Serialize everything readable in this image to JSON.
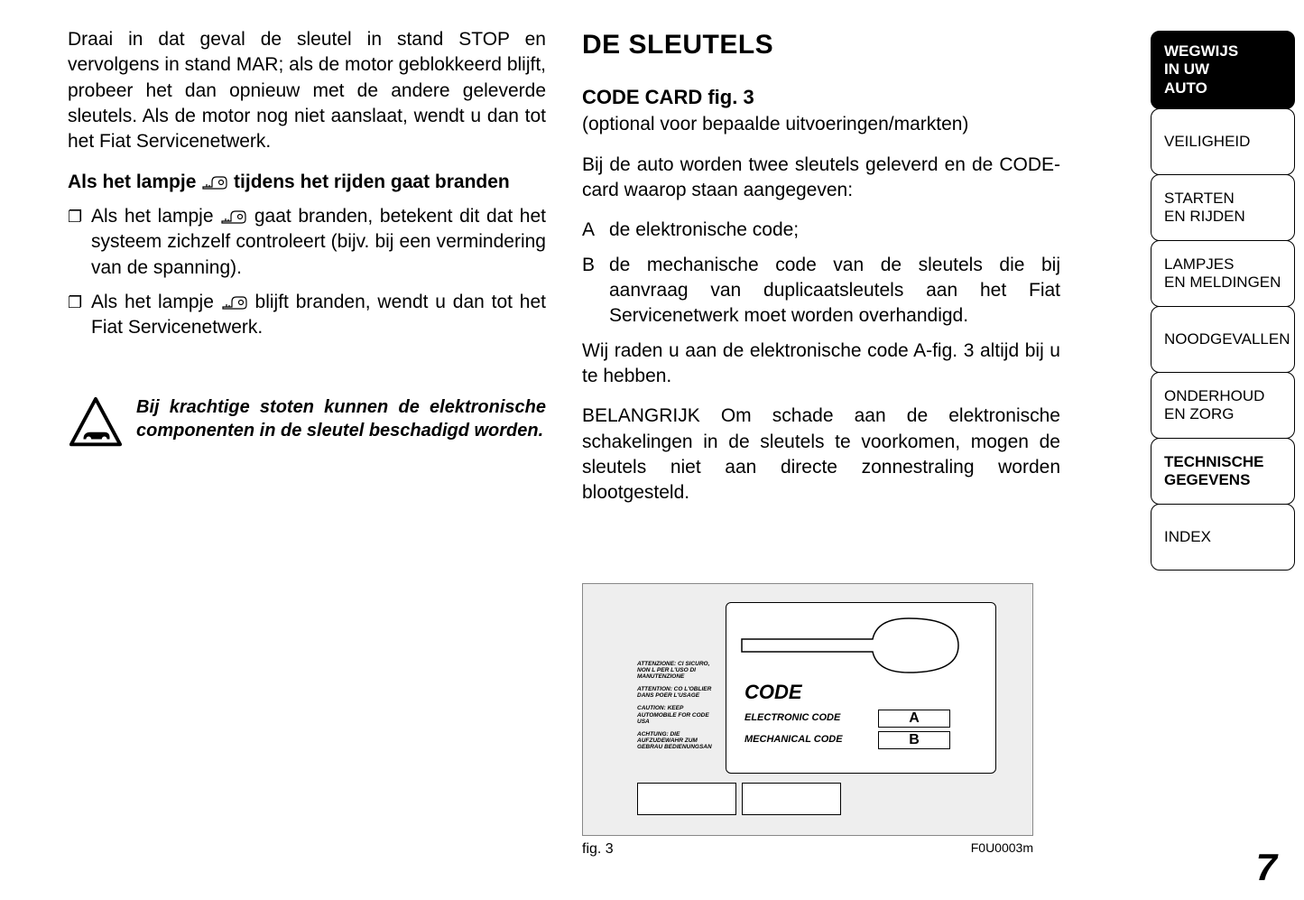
{
  "left": {
    "para1": "Draai in dat geval de sleutel in stand STOP en vervolgens in stand MAR; als de motor geblokkeerd blijft, probeer het dan opnieuw met de andere geleverde sleutels. Als de motor nog niet aanslaat, wendt u dan tot het Fiat Servicenetwerk.",
    "bold_heading_pre": "Als het lampje ",
    "bold_heading_post": " tijdens het rijden gaat branden",
    "bullet1_pre": "Als het lampje ",
    "bullet1_post": " gaat branden, betekent dit dat het systeem zichzelf controleert (bijv. bij een vermindering van de spanning).",
    "bullet2_pre": "Als het lampje ",
    "bullet2_post": " blijft branden, wendt u dan tot het Fiat Servicenetwerk.",
    "warning": "Bij krachtige stoten kunnen de elektronische componenten in de sleutel beschadigd worden."
  },
  "right": {
    "title": "DE SLEUTELS",
    "subtitle": "CODE CARD fig. 3",
    "optional": "(optional voor bepaalde uitvoeringen/markten)",
    "para1": "Bij de auto worden twee sleutels geleverd en de CODE-card waarop staan aangegeven:",
    "itemA_letter": "A",
    "itemA_text": "de elektronische code;",
    "itemB_letter": "B",
    "itemB_text": "de mechanische code van de sleutels die bij aanvraag van duplicaatsleutels aan het Fiat Servicenetwerk moet worden overhandigd.",
    "para2": "Wij raden u aan de elektronische code A-fig. 3 altijd bij u te hebben.",
    "para3": "BELANGRIJK Om schade aan de elektronische schakelingen in de sleutels te voorkomen, mogen de sleutels niet aan directe zonnestraling worden blootgesteld."
  },
  "figure": {
    "side_texts": [
      "ATTENZIONE: CI SICURO, NON L PER L'USO DI MANUTENZIONE",
      "ATTENTION: CO L'OBLIER DANS POER L'USAGE",
      "CAUTION: KEEP AUTOMOBILE FOR CODE USA",
      "ACHTUNG: DIE AUFZUDEWAHR ZUM GEBRAU BEDIENUNGSAN"
    ],
    "code_title": "CODE",
    "row1_label": "ELECTRONIC CODE",
    "row1_val": "A",
    "row2_label": "MECHANICAL CODE",
    "row2_val": "B",
    "caption": "fig. 3",
    "fid": "F0U0003m"
  },
  "tabs": [
    {
      "label": "WEGWIJS\nIN UW\nAUTO",
      "active": true
    },
    {
      "label": "VEILIGHEID"
    },
    {
      "label": "STARTEN\nEN RIJDEN"
    },
    {
      "label": "LAMPJES\nEN MELDINGEN"
    },
    {
      "label": "NOODGEVALLEN"
    },
    {
      "label": "ONDERHOUD\nEN ZORG"
    },
    {
      "label": "TECHNISCHE\nGEGEVENS",
      "bold": true
    },
    {
      "label": "INDEX"
    }
  ],
  "page_number": "7",
  "colors": {
    "bg": "#ffffff",
    "fig_bg": "#eeeeee",
    "tab_active_bg": "#000000",
    "tab_active_fg": "#ffffff"
  }
}
